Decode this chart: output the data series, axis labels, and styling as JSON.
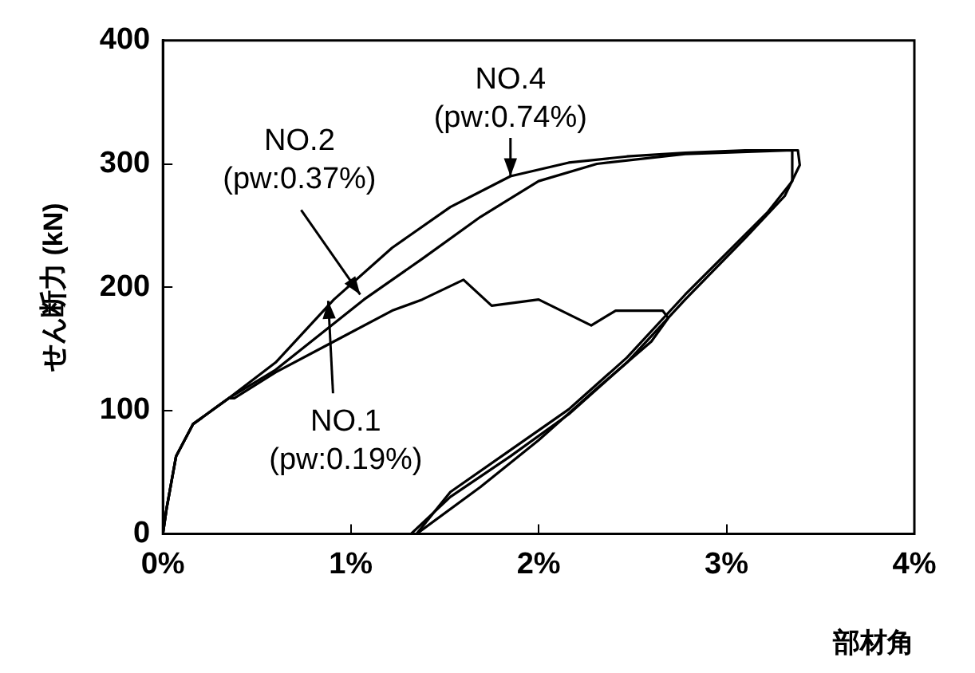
{
  "chart_data": {
    "type": "line",
    "xlabel": "部材角",
    "ylabel": "せん断力 (kN)",
    "xlim": [
      0,
      4
    ],
    "xticks": [
      {
        "value": 0,
        "label": "0%"
      },
      {
        "value": 1,
        "label": "1%"
      },
      {
        "value": 2,
        "label": "2%"
      },
      {
        "value": 3,
        "label": "3%"
      },
      {
        "value": 4,
        "label": "4%"
      }
    ],
    "ylim": [
      0,
      400
    ],
    "yticks": [
      0,
      100,
      200,
      300,
      400
    ],
    "grid": false,
    "legend": false,
    "marker": "none",
    "line_style": "solid",
    "series": [
      {
        "color": "#000000",
        "x": [
          0,
          0.02,
          0.07,
          0.16,
          0.35,
          0.38,
          0.6,
          0.91,
          1.22,
          1.38,
          1.6,
          1.75,
          2.0,
          2.28,
          2.41,
          2.66,
          2.69,
          2.6,
          2.31,
          2.0,
          1.69,
          1.35
        ],
        "values": [
          0,
          21,
          63,
          89,
          110,
          110,
          131,
          156,
          181,
          190,
          206,
          185,
          190,
          169,
          181,
          181,
          175,
          156,
          118,
          76,
          38,
          0
        ]
      },
      {
        "color": "#000000",
        "x": [
          0,
          0.02,
          0.07,
          0.16,
          0.35,
          0.6,
          1.07,
          1.38,
          1.69,
          2.0,
          2.31,
          2.78,
          3.35,
          3.35,
          3.22,
          2.78,
          2.47,
          2.16,
          1.85,
          1.53,
          1.35
        ],
        "values": [
          0,
          21,
          63,
          89,
          110,
          133,
          190,
          223,
          257,
          286,
          300,
          308,
          311,
          286,
          261,
          194,
          143,
          101,
          68,
          34,
          0
        ]
      },
      {
        "color": "#000000",
        "x": [
          0,
          0.02,
          0.07,
          0.16,
          0.35,
          0.6,
          0.91,
          1.22,
          1.53,
          1.85,
          2.16,
          2.47,
          2.78,
          3.1,
          3.38,
          3.39,
          3.31,
          3.1,
          2.78,
          2.47,
          2.16,
          1.85,
          1.53,
          1.32
        ],
        "values": [
          0,
          21,
          63,
          89,
          110,
          139,
          190,
          232,
          265,
          290,
          301,
          306,
          309,
          311,
          311,
          299,
          274,
          240,
          190,
          139,
          97,
          63,
          30,
          0
        ]
      }
    ],
    "annotations": [
      {
        "text": "NO.4\n(pw:0.74%)",
        "x": 1.85,
        "y": 290
      },
      {
        "text": "NO.2\n(pw:0.37%)",
        "x": 1.05,
        "y": 194
      },
      {
        "text": "NO.1\n(pw:0.19%)",
        "x": 0.88,
        "y": 189
      }
    ]
  }
}
